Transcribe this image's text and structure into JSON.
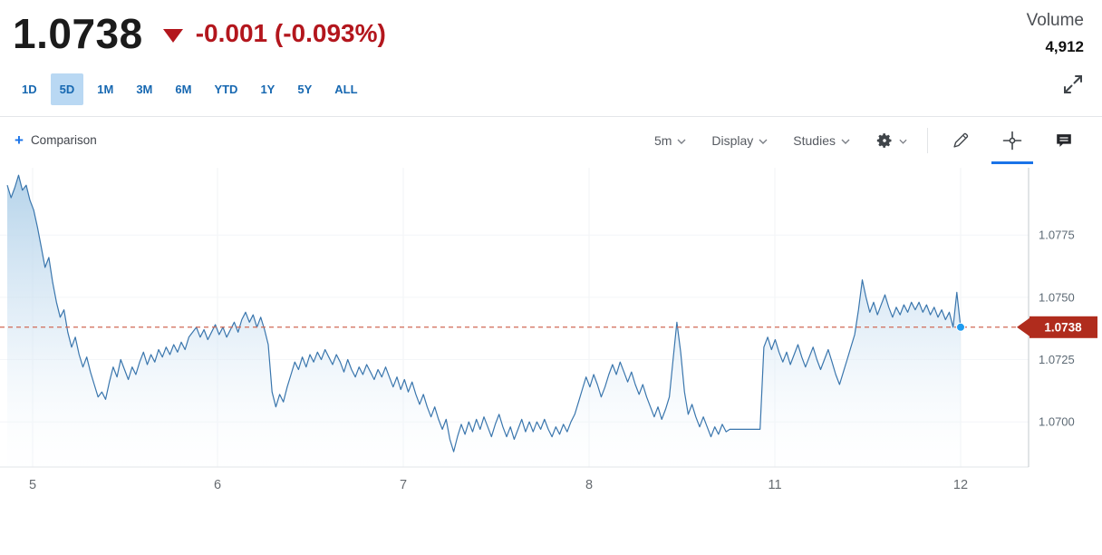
{
  "quote": {
    "price": "1.0738",
    "change_text": "-0.001 (-0.093%)",
    "change_color": "#b3161d",
    "volume_label": "Volume",
    "volume_value": "4,912"
  },
  "ranges": {
    "items": [
      "1D",
      "5D",
      "1M",
      "3M",
      "6M",
      "YTD",
      "1Y",
      "5Y",
      "ALL"
    ],
    "active": "5D",
    "active_bg": "#b9d8f3",
    "tab_color": "#1768b1"
  },
  "toolbar": {
    "comparison_plus": "+",
    "comparison_label": "Comparison",
    "interval_label": "5m",
    "display_label": "Display",
    "studies_label": "Studies",
    "active_tool": "crosshair"
  },
  "icons": [
    "down-triangle-icon",
    "expand-icon",
    "chevron-down-icon",
    "gear-icon",
    "pencil-icon",
    "crosshair-icon",
    "comment-icon"
  ],
  "chart_data": {
    "type": "area",
    "title": "EUR/USD 5-day price chart, 5-minute intervals",
    "x_tick_labels": [
      "5",
      "6",
      "7",
      "8",
      "11",
      "12"
    ],
    "y_tick_labels": [
      "1.0775",
      "1.0750",
      "1.0725",
      "1.0700"
    ],
    "y_ticks": [
      1.0775,
      1.075,
      1.0725,
      1.07
    ],
    "ylim": [
      1.0682,
      1.0802
    ],
    "grid": "faint",
    "legend": "none",
    "current_price": 1.0738,
    "current_price_label": "1.0738",
    "line_color": "#3a76ad",
    "fill_top_color": "#aecfe8",
    "fill_bottom_color": "#fbfdff",
    "dashed_line_color": "#d06a55",
    "badge_color": "#b02c1d",
    "dot_color": "#1e9cf0",
    "prices": [
      1.0795,
      1.079,
      1.0794,
      1.0799,
      1.0793,
      1.0795,
      1.0789,
      1.0785,
      1.0778,
      1.077,
      1.0762,
      1.0766,
      1.0756,
      1.0748,
      1.0742,
      1.0745,
      1.0736,
      1.073,
      1.0734,
      1.0727,
      1.0722,
      1.0726,
      1.072,
      1.0715,
      1.071,
      1.0712,
      1.0709,
      1.0716,
      1.0722,
      1.0718,
      1.0725,
      1.0721,
      1.0717,
      1.0722,
      1.0719,
      1.0724,
      1.0728,
      1.0723,
      1.0727,
      1.0724,
      1.0729,
      1.0726,
      1.073,
      1.0727,
      1.0731,
      1.0728,
      1.0732,
      1.0729,
      1.0734,
      1.0736,
      1.0738,
      1.0734,
      1.0737,
      1.0733,
      1.0736,
      1.0739,
      1.0735,
      1.0738,
      1.0734,
      1.0737,
      1.074,
      1.0736,
      1.0741,
      1.0744,
      1.074,
      1.0743,
      1.0738,
      1.0742,
      1.0737,
      1.0731,
      1.0712,
      1.0706,
      1.0711,
      1.0708,
      1.0714,
      1.0719,
      1.0724,
      1.0721,
      1.0726,
      1.0722,
      1.0727,
      1.0724,
      1.0728,
      1.0725,
      1.0729,
      1.0726,
      1.0723,
      1.0727,
      1.0724,
      1.072,
      1.0725,
      1.0721,
      1.0718,
      1.0722,
      1.0719,
      1.0723,
      1.072,
      1.0717,
      1.0721,
      1.0718,
      1.0722,
      1.0718,
      1.0714,
      1.0718,
      1.0713,
      1.0717,
      1.0712,
      1.0716,
      1.0711,
      1.0707,
      1.0711,
      1.0706,
      1.0702,
      1.0706,
      1.0701,
      1.0697,
      1.0701,
      1.0693,
      1.0688,
      1.0694,
      1.0699,
      1.0695,
      1.07,
      1.0696,
      1.0701,
      1.0697,
      1.0702,
      1.0698,
      1.0694,
      1.0699,
      1.0703,
      1.0698,
      1.0694,
      1.0698,
      1.0693,
      1.0697,
      1.0701,
      1.0696,
      1.07,
      1.0696,
      1.07,
      1.0697,
      1.0701,
      1.0697,
      1.0694,
      1.0698,
      1.0695,
      1.0699,
      1.0696,
      1.07,
      1.0703,
      1.0708,
      1.0713,
      1.0718,
      1.0714,
      1.0719,
      1.0715,
      1.071,
      1.0714,
      1.0719,
      1.0723,
      1.0719,
      1.0724,
      1.072,
      1.0716,
      1.072,
      1.0715,
      1.0711,
      1.0715,
      1.071,
      1.0706,
      1.0702,
      1.0706,
      1.0701,
      1.0705,
      1.071,
      1.0725,
      1.074,
      1.0728,
      1.0712,
      1.0703,
      1.0707,
      1.0702,
      1.0698,
      1.0702,
      1.0698,
      1.0694,
      1.0698,
      1.0695,
      1.0699,
      1.0696,
      1.0697,
      1.0697,
      1.0697,
      1.0697,
      1.0697,
      1.0697,
      1.0697,
      1.0697,
      1.0697,
      1.073,
      1.0734,
      1.0729,
      1.0733,
      1.0728,
      1.0724,
      1.0728,
      1.0723,
      1.0727,
      1.0731,
      1.0726,
      1.0722,
      1.0726,
      1.073,
      1.0725,
      1.0721,
      1.0725,
      1.0729,
      1.0724,
      1.0719,
      1.0715,
      1.072,
      1.0725,
      1.073,
      1.0735,
      1.0745,
      1.0757,
      1.075,
      1.0744,
      1.0748,
      1.0743,
      1.0747,
      1.0751,
      1.0746,
      1.0742,
      1.0746,
      1.0743,
      1.0747,
      1.0744,
      1.0748,
      1.0745,
      1.0748,
      1.0744,
      1.0747,
      1.0743,
      1.0746,
      1.0742,
      1.0745,
      1.0741,
      1.0744,
      1.0738,
      1.0752,
      1.0738
    ]
  }
}
